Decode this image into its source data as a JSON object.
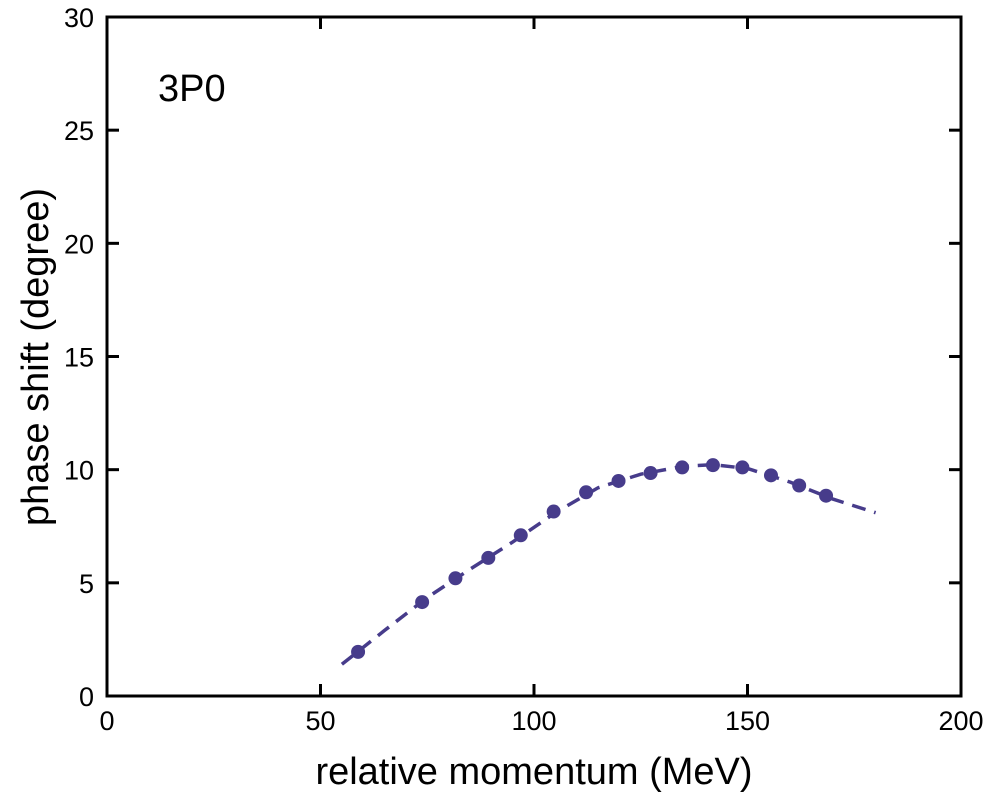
{
  "chart_data": {
    "type": "line",
    "panel_label": "3P0",
    "xlabel": "relative momentum (MeV)",
    "ylabel": "phase shift (degree)",
    "xlim": [
      0,
      200
    ],
    "ylim": [
      0,
      30
    ],
    "x_ticks": [
      0,
      50,
      100,
      150,
      200
    ],
    "y_ticks": [
      0,
      5,
      10,
      15,
      20,
      25,
      30
    ],
    "x_tick_labels": [
      "0",
      "50",
      "100",
      "150",
      "200"
    ],
    "y_tick_labels": [
      "0",
      "5",
      "10",
      "15",
      "20",
      "25",
      "30"
    ],
    "grid": false,
    "series": [
      {
        "name": "points",
        "style": "markers",
        "color": "#473c8b",
        "x": [
          58.8,
          73.8,
          81.6,
          89.3,
          96.9,
          104.6,
          112.2,
          119.8,
          127.3,
          134.7,
          141.9,
          148.8,
          155.5,
          162.1,
          168.4
        ],
        "y": [
          1.95,
          4.15,
          5.2,
          6.1,
          7.1,
          8.15,
          9.0,
          9.5,
          9.85,
          10.1,
          10.2,
          10.1,
          9.75,
          9.3,
          8.85
        ]
      },
      {
        "name": "curve",
        "style": "dashed",
        "color": "#473c8b",
        "x": [
          55,
          65,
          75,
          85,
          95,
          105,
          115,
          125,
          135,
          142,
          150,
          160,
          170,
          180
        ],
        "y": [
          1.4,
          2.9,
          4.35,
          5.6,
          6.8,
          8.1,
          9.2,
          9.8,
          10.15,
          10.22,
          10.05,
          9.45,
          8.7,
          8.1
        ]
      }
    ]
  }
}
